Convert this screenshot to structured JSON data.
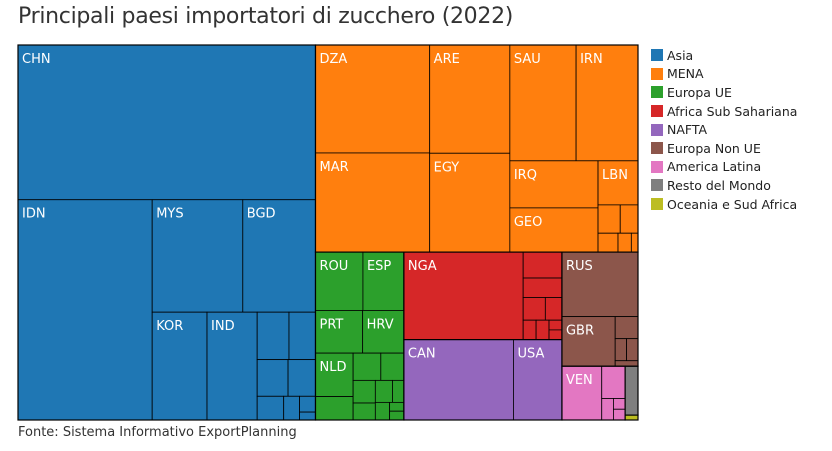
{
  "title": "Principali paesi importatori di zucchero (2022)",
  "source": "Fonte: Sistema Informativo ExportPlanning",
  "legend": [
    {
      "name": "Asia",
      "color": "#1f77b4"
    },
    {
      "name": "MENA",
      "color": "#ff7f0e"
    },
    {
      "name": "Europa UE",
      "color": "#2ca02c"
    },
    {
      "name": "Africa Sub Sahariana",
      "color": "#d62728"
    },
    {
      "name": "NAFTA",
      "color": "#9467bd"
    },
    {
      "name": "Europa Non UE",
      "color": "#8c564b"
    },
    {
      "name": "America Latina",
      "color": "#e377c2"
    },
    {
      "name": "Resto del Mondo",
      "color": "#7f7f7f"
    },
    {
      "name": "Oceania e Sud Africa",
      "color": "#bcbd22"
    }
  ],
  "chart_data": {
    "type": "treemap",
    "title": "Principali paesi importatori di zucchero (2022)",
    "groups": [
      {
        "name": "Asia",
        "color": "#1f77b4",
        "countries": [
          {
            "label": "CHN",
            "value": 36.6
          },
          {
            "label": "IDN",
            "value": 23.5
          },
          {
            "label": "MYS",
            "value": 8.1
          },
          {
            "label": "BGD",
            "value": 6.5
          },
          {
            "label": "KOR",
            "value": 4.7
          },
          {
            "label": "IND",
            "value": 4.3
          },
          {
            "label": "",
            "value": 1.2
          },
          {
            "label": "",
            "value": 1.0
          },
          {
            "label": "",
            "value": 0.9
          },
          {
            "label": "",
            "value": 0.8
          },
          {
            "label": "",
            "value": 0.5
          },
          {
            "label": "",
            "value": 0.3
          },
          {
            "label": "",
            "value": 0.2
          },
          {
            "label": "",
            "value": 0.1
          }
        ]
      },
      {
        "name": "MENA",
        "color": "#ff7f0e",
        "countries": [
          {
            "label": "DZA",
            "value": 9.8
          },
          {
            "label": "MAR",
            "value": 9.0
          },
          {
            "label": "ARE",
            "value": 6.9
          },
          {
            "label": "EGY",
            "value": 6.3
          },
          {
            "label": "SAU",
            "value": 6.1
          },
          {
            "label": "IRN",
            "value": 5.7
          },
          {
            "label": "IRQ",
            "value": 3.3
          },
          {
            "label": "GEO",
            "value": 3.1
          },
          {
            "label": "LBN",
            "value": 1.4
          },
          {
            "label": "",
            "value": 0.5
          },
          {
            "label": "",
            "value": 0.4
          },
          {
            "label": "",
            "value": 0.3
          },
          {
            "label": "",
            "value": 0.2
          },
          {
            "label": "",
            "value": 0.1
          }
        ]
      },
      {
        "name": "Europa UE",
        "color": "#2ca02c",
        "countries": [
          {
            "label": "ESP",
            "value": 1.9
          },
          {
            "label": "PRT",
            "value": 1.6
          },
          {
            "label": "HRV",
            "value": 1.4
          },
          {
            "label": "NLD",
            "value": 1.3
          },
          {
            "label": "ROU",
            "value": 2.2
          },
          {
            "label": "",
            "value": 0.7
          },
          {
            "label": "",
            "value": 0.6
          },
          {
            "label": "",
            "value": 0.5
          },
          {
            "label": "",
            "value": 0.4
          },
          {
            "label": "",
            "value": 0.3
          },
          {
            "label": "",
            "value": 0.3
          },
          {
            "label": "",
            "value": 0.2
          },
          {
            "label": "",
            "value": 0.2
          },
          {
            "label": "",
            "value": 0.1
          },
          {
            "label": "",
            "value": 0.1
          }
        ]
      },
      {
        "name": "Africa Sub Sahariana",
        "color": "#d62728",
        "countries": [
          {
            "label": "NGA",
            "value": 8.3
          },
          {
            "label": "",
            "value": 0.8
          },
          {
            "label": "",
            "value": 0.6
          },
          {
            "label": "",
            "value": 0.4
          },
          {
            "label": "",
            "value": 0.3
          },
          {
            "label": "",
            "value": 0.2
          },
          {
            "label": "",
            "value": 0.2
          },
          {
            "label": "",
            "value": 0.1
          },
          {
            "label": "",
            "value": 0.1
          }
        ]
      },
      {
        "name": "NAFTA",
        "color": "#9467bd",
        "countries": [
          {
            "label": "CAN",
            "value": 7.0
          },
          {
            "label": "USA",
            "value": 3.1
          }
        ]
      },
      {
        "name": "Europa Non UE",
        "color": "#8c564b",
        "countries": [
          {
            "label": "RUS",
            "value": 3.9
          },
          {
            "label": "GBR",
            "value": 2.1
          },
          {
            "label": "",
            "value": 0.4
          },
          {
            "label": "",
            "value": 0.2
          },
          {
            "label": "",
            "value": 0.2
          },
          {
            "label": "",
            "value": 0.1
          }
        ]
      },
      {
        "name": "America Latina",
        "color": "#e377c2",
        "countries": [
          {
            "label": "VEN",
            "value": 1.7
          },
          {
            "label": "",
            "value": 0.6
          },
          {
            "label": "",
            "value": 0.2
          },
          {
            "label": "",
            "value": 0.1
          },
          {
            "label": "",
            "value": 0.1
          }
        ]
      },
      {
        "name": "Resto del Mondo",
        "color": "#7f7f7f",
        "countries": [
          {
            "label": "",
            "value": 0.5
          }
        ]
      },
      {
        "name": "Oceania e Sud Africa",
        "color": "#bcbd22",
        "countries": [
          {
            "label": "",
            "value": 0.05
          }
        ]
      }
    ]
  }
}
